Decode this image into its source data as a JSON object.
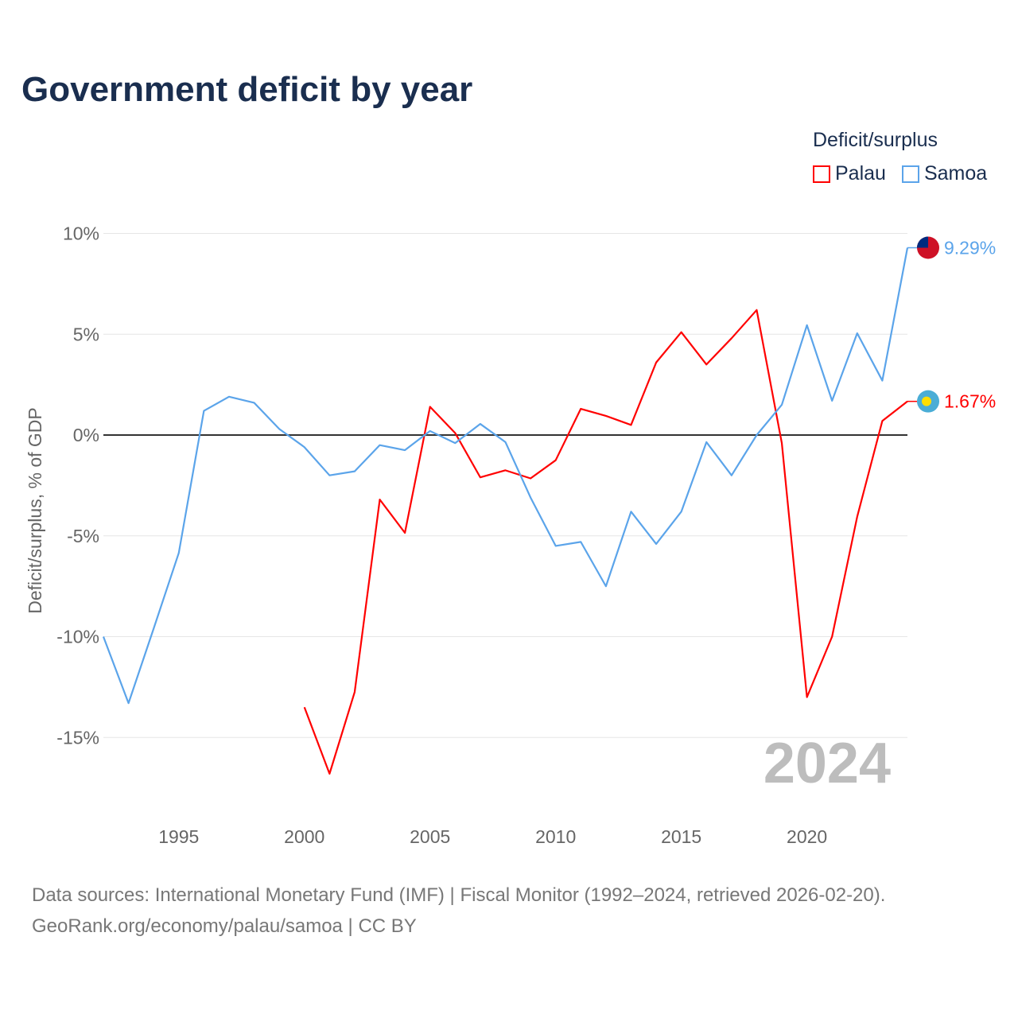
{
  "title": "Government deficit by year",
  "legend": {
    "title": "Deficit/surplus"
  },
  "source_line1": "Data sources: International Monetary Fund (IMF) | Fiscal Monitor (1992–2024, retrieved 2026-02-20).",
  "source_line2": "GeoRank.org/economy/palau/samoa | CC BY",
  "chart_data": {
    "type": "line",
    "title": "Government deficit by year",
    "xlabel": "",
    "ylabel": "Deficit/surplus, % of GDP",
    "xlim": [
      1992,
      2024
    ],
    "ylim": [
      -17,
      10
    ],
    "x_ticks": [
      1995,
      2000,
      2005,
      2010,
      2015,
      2020
    ],
    "y_ticks": [
      10,
      5,
      0,
      -5,
      -10,
      -15
    ],
    "y_tick_labels": [
      "10%",
      "5%",
      "0%",
      "-5%",
      "-10%",
      "-15%"
    ],
    "year_watermark": "2024",
    "legend_placement": "top-right",
    "series": [
      {
        "name": "Palau",
        "color": "#ff0000",
        "end_label": "1.67%",
        "x": [
          2000,
          2001,
          2002,
          2003,
          2004,
          2005,
          2006,
          2007,
          2008,
          2009,
          2010,
          2011,
          2012,
          2013,
          2014,
          2015,
          2016,
          2017,
          2018,
          2019,
          2020,
          2021,
          2022,
          2023,
          2024
        ],
        "values": [
          -13.5,
          -16.8,
          -12.75,
          -3.2,
          -4.85,
          1.4,
          0.1,
          -2.1,
          -1.75,
          -2.15,
          -1.25,
          1.3,
          0.95,
          0.5,
          3.6,
          5.1,
          3.5,
          4.8,
          6.2,
          -0.4,
          -13.0,
          -10.0,
          -4.05,
          0.7,
          1.67
        ]
      },
      {
        "name": "Samoa",
        "color": "#5ba4ea",
        "end_label": "9.29%",
        "x": [
          1992,
          1993,
          1994,
          1995,
          1996,
          1997,
          1998,
          1999,
          2000,
          2001,
          2002,
          2003,
          2004,
          2005,
          2006,
          2007,
          2008,
          2009,
          2010,
          2011,
          2012,
          2013,
          2014,
          2015,
          2016,
          2017,
          2018,
          2019,
          2020,
          2021,
          2022,
          2023,
          2024
        ],
        "values": [
          -10.0,
          -13.3,
          -9.6,
          -5.85,
          1.2,
          1.9,
          1.6,
          0.3,
          -0.6,
          -2.0,
          -1.8,
          -0.5,
          -0.75,
          0.2,
          -0.4,
          0.55,
          -0.35,
          -3.1,
          -5.5,
          -5.3,
          -7.5,
          -3.8,
          -5.4,
          -3.8,
          -0.35,
          -2.0,
          0.0,
          1.5,
          5.45,
          1.7,
          5.05,
          2.7,
          9.29
        ]
      }
    ]
  }
}
